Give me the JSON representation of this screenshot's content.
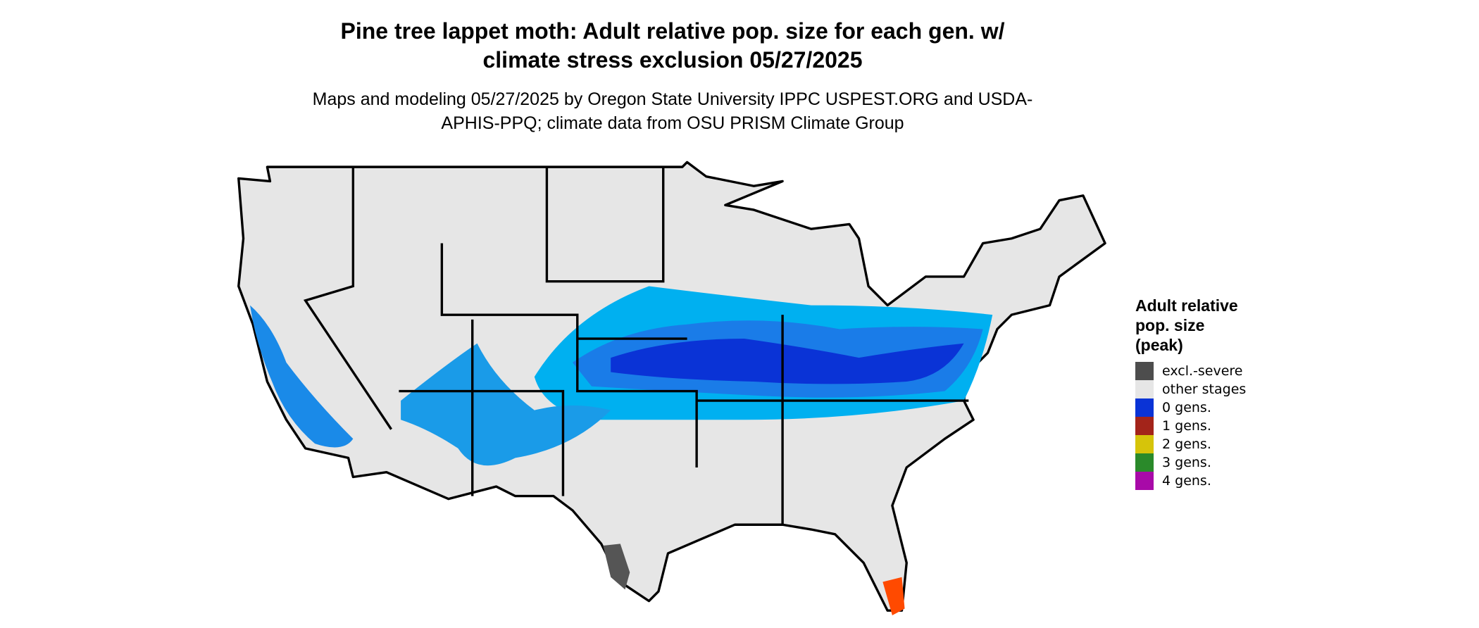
{
  "title": "Pine tree lappet moth: Adult relative pop. size for each gen. w/ climate stress exclusion 05/27/2025",
  "subtitle": "Maps and modeling 05/27/2025 by Oregon State University IPPC USPEST.ORG and USDA-APHIS-PPQ; climate data from OSU PRISM Climate Group",
  "legend": {
    "title": "Adult relative pop. size (peak)",
    "items": [
      {
        "label": "excl.-severe",
        "color": "#4d4d4d"
      },
      {
        "label": "other stages",
        "color": "#e6e6e6"
      },
      {
        "label": "0 gens.",
        "color": "#0a33d6"
      },
      {
        "label": "1 gens.",
        "color": "#a3241a"
      },
      {
        "label": "2 gens.",
        "color": "#d6c40a"
      },
      {
        "label": "3 gens.",
        "color": "#2a8a2a"
      },
      {
        "label": "4 gens.",
        "color": "#a80aa8"
      }
    ]
  }
}
